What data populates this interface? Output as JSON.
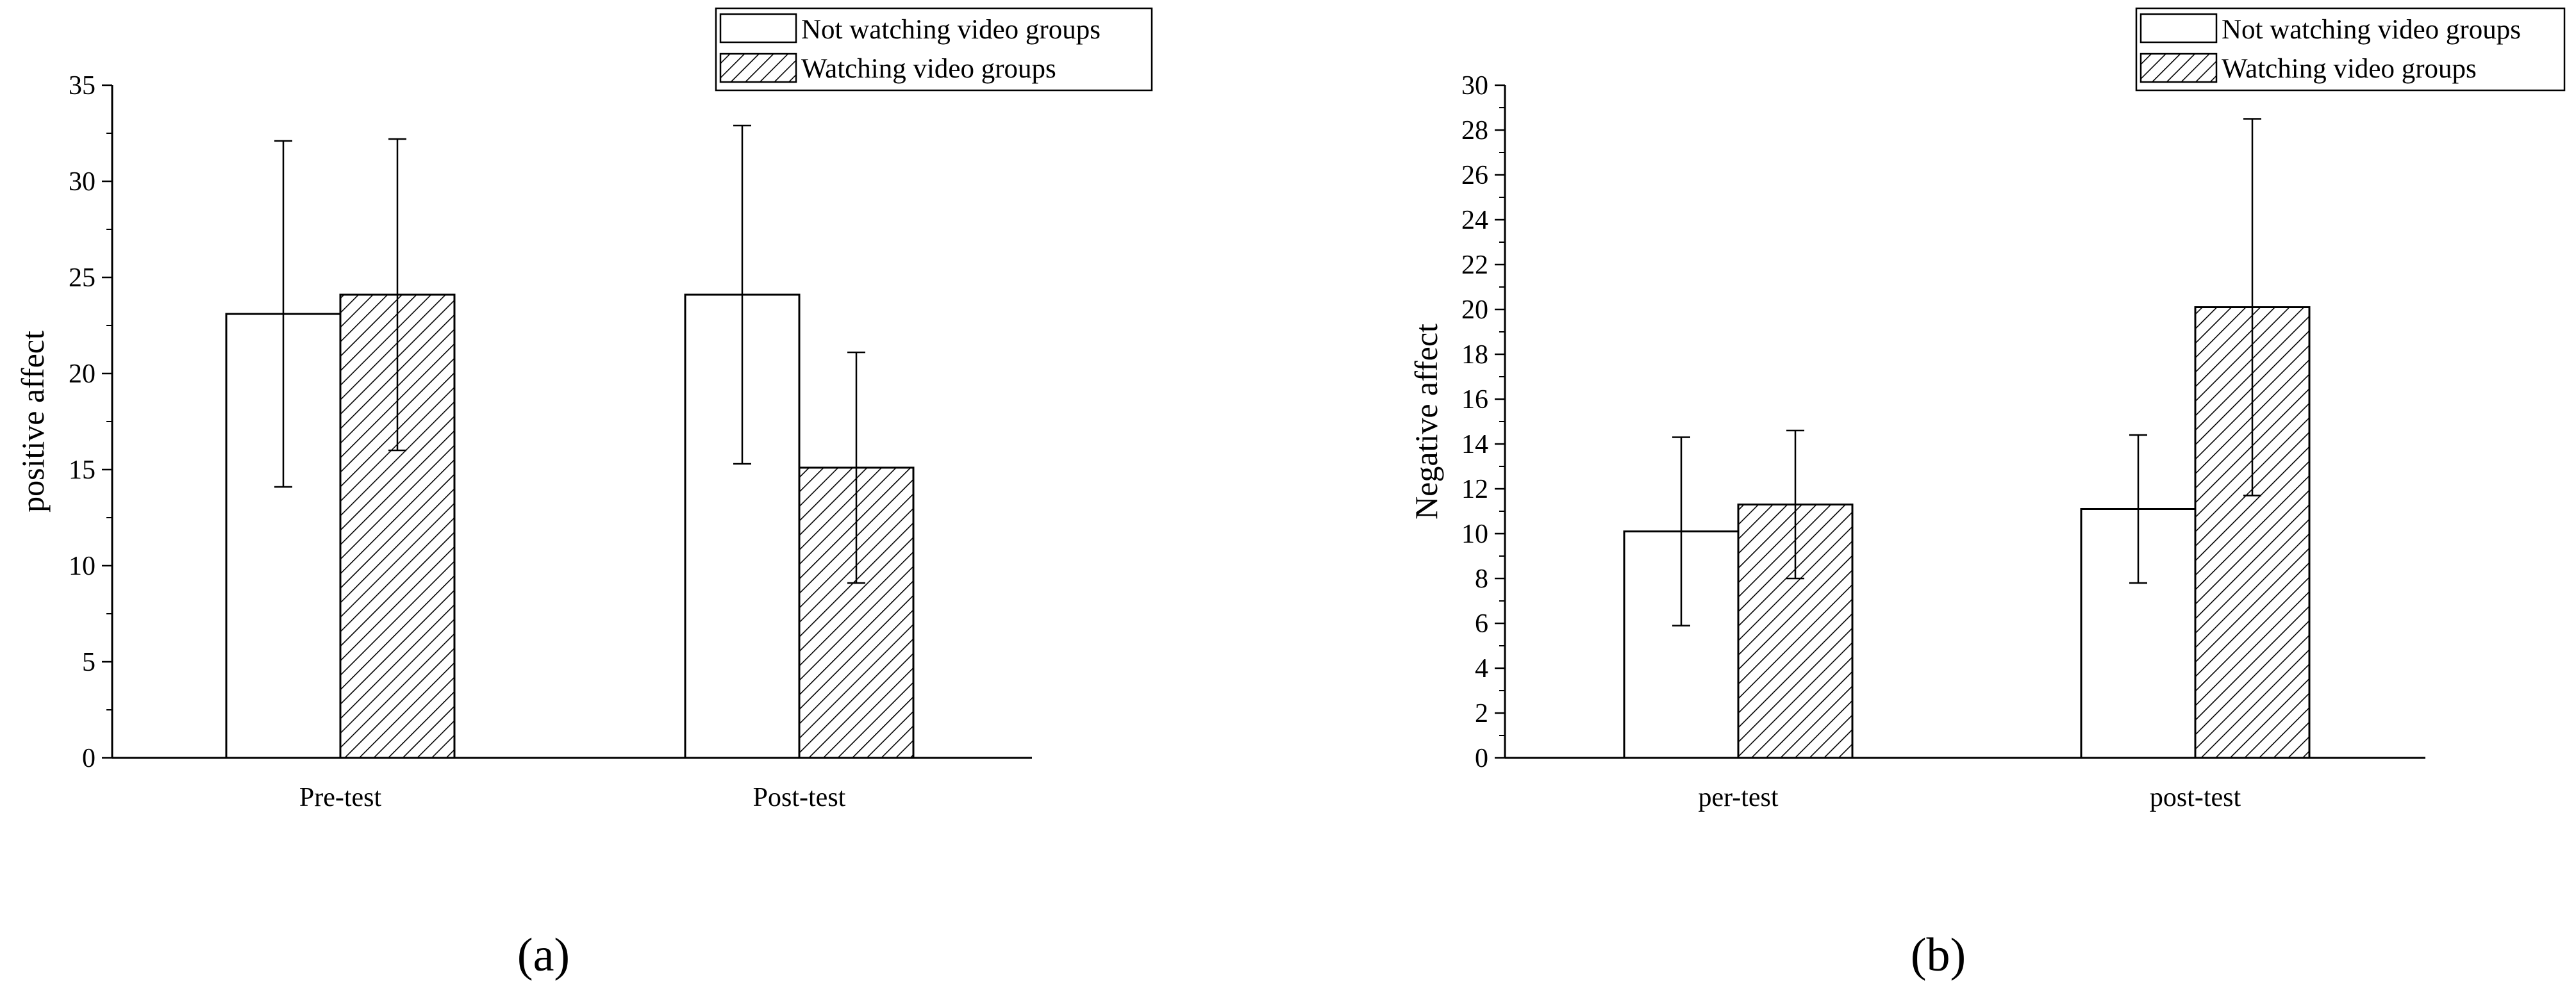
{
  "chart_data": [
    {
      "type": "bar",
      "panel_label": "(a)",
      "title": "",
      "xlabel": "",
      "ylabel": "positive affect",
      "ylim": [
        0,
        35
      ],
      "yticks": [
        0,
        5,
        10,
        15,
        20,
        25,
        30,
        35
      ],
      "categories": [
        "Pre-test",
        "Post-test"
      ],
      "series": [
        {
          "name": "Not watching video groups",
          "pattern": "none",
          "values": [
            23.1,
            24.1
          ],
          "errors": [
            9.0,
            8.8
          ]
        },
        {
          "name": "Watching video groups",
          "pattern": "hatched",
          "values": [
            24.1,
            15.1
          ],
          "errors": [
            8.1,
            6.0
          ]
        }
      ],
      "legend": "top-right",
      "grid": false
    },
    {
      "type": "bar",
      "panel_label": "(b)",
      "title": "",
      "xlabel": "",
      "ylabel": "Negative affect",
      "ylim": [
        0,
        30
      ],
      "yticks": [
        0,
        2,
        4,
        6,
        8,
        10,
        12,
        14,
        16,
        18,
        20,
        22,
        24,
        26,
        28,
        30
      ],
      "categories": [
        "per-test",
        "post-test"
      ],
      "series": [
        {
          "name": "Not watching video groups",
          "pattern": "none",
          "values": [
            10.1,
            11.1
          ],
          "errors": [
            4.2,
            3.3
          ]
        },
        {
          "name": "Watching video groups",
          "pattern": "hatched",
          "values": [
            11.3,
            20.1
          ],
          "errors": [
            3.3,
            8.4
          ]
        }
      ],
      "legend": "top-right",
      "grid": false
    }
  ]
}
